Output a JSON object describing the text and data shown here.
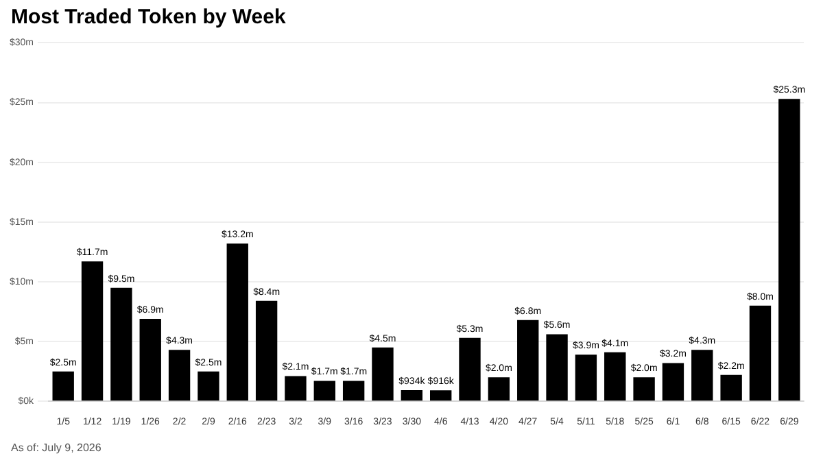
{
  "chart_data": {
    "type": "bar",
    "title": "Most Traded Token by Week",
    "categories": [
      "1/5",
      "1/12",
      "1/19",
      "1/26",
      "2/2",
      "2/9",
      "2/16",
      "2/23",
      "3/2",
      "3/9",
      "3/16",
      "3/23",
      "3/30",
      "4/6",
      "4/13",
      "4/20",
      "4/27",
      "5/4",
      "5/11",
      "5/18",
      "5/25",
      "6/1",
      "6/8",
      "6/15",
      "6/22",
      "6/29"
    ],
    "values": [
      2500000,
      11700000,
      9500000,
      6900000,
      4300000,
      2500000,
      13200000,
      8400000,
      2100000,
      1700000,
      1700000,
      4500000,
      934000,
      916000,
      5300000,
      2000000,
      6800000,
      5600000,
      3900000,
      4100000,
      2000000,
      3200000,
      4300000,
      2200000,
      8000000,
      25300000
    ],
    "value_labels": [
      "$2.5m",
      "$11.7m",
      "$9.5m",
      "$6.9m",
      "$4.3m",
      "$2.5m",
      "$13.2m",
      "$8.4m",
      "$2.1m",
      "$1.7m",
      "$1.7m",
      "$4.5m",
      "$934k",
      "$916k",
      "$5.3m",
      "$2.0m",
      "$6.8m",
      "$5.6m",
      "$3.9m",
      "$4.1m",
      "$2.0m",
      "$3.2m",
      "$4.3m",
      "$2.2m",
      "$8.0m",
      "$25.3m"
    ],
    "color": "#000000",
    "ylim": [
      0,
      30000000
    ],
    "yticks": [
      {
        "value": 0,
        "label": "$0k"
      },
      {
        "value": 5000000,
        "label": "$5m"
      },
      {
        "value": 10000000,
        "label": "$10m"
      },
      {
        "value": 15000000,
        "label": "$15m"
      },
      {
        "value": 20000000,
        "label": "$20m"
      },
      {
        "value": 25000000,
        "label": "$25m"
      },
      {
        "value": 30000000,
        "label": "$30m"
      }
    ],
    "grid": "y",
    "annotations": [
      "As of: July 9, 2026"
    ]
  }
}
